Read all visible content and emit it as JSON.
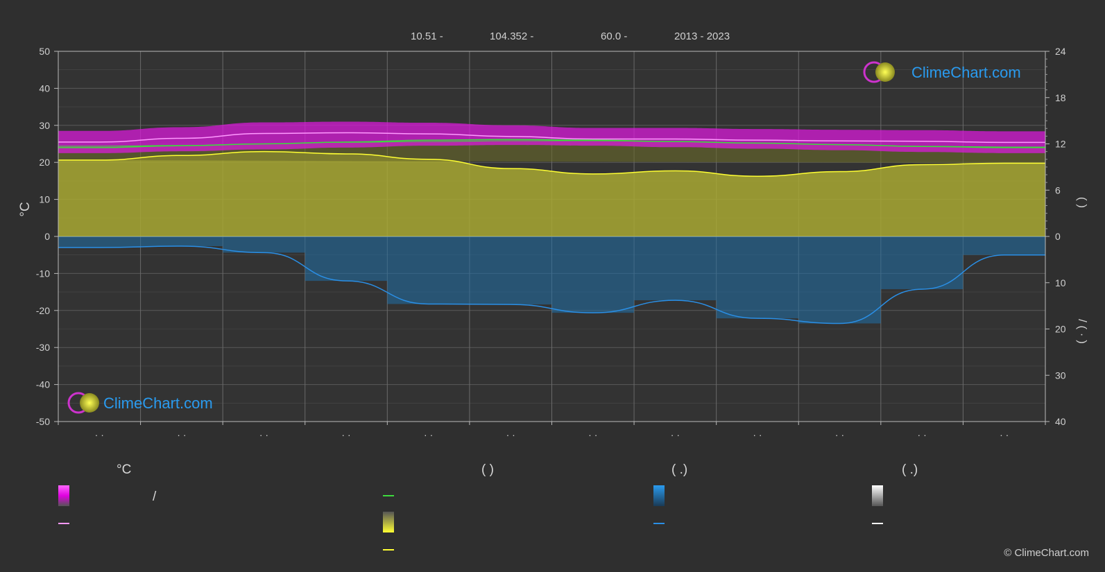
{
  "header": {
    "lat": "10.51 -",
    "lon": "104.352 -",
    "elev": "60.0 -",
    "years": "2013 - 2023"
  },
  "logo_text": "ClimeChart.com",
  "copyright": "© ClimeChart.com",
  "colors": {
    "background": "#2f2f2f",
    "temp_range": "#d81bd8",
    "avg_max": "#ff99ff",
    "avg_temp": "#3ddc3d",
    "sunshine_fill": "#a8a832",
    "sunshine_line": "#ffff33",
    "precip_fill": "#1f6fa8",
    "precip_line": "#2a8fe6",
    "snow_line": "#ffffff",
    "logo_blue": "#2a9bef"
  },
  "chart_data": {
    "type": "area",
    "x_months": [
      1,
      2,
      3,
      4,
      5,
      6,
      7,
      8,
      9,
      10,
      11,
      12
    ],
    "x_tick_labels": [
      "· ·",
      "· ·",
      "· ·",
      "· ·",
      "· ·",
      "· ·",
      "· ·",
      "· ·",
      "· ·",
      "· ·",
      "· ·",
      "· ·"
    ],
    "y_left": {
      "label": "°C",
      "range": [
        -50,
        50
      ],
      "ticks": [
        50,
        40,
        30,
        20,
        10,
        0,
        -10,
        -20,
        -30,
        -40,
        -50
      ]
    },
    "y_right_top": {
      "label": "(  )",
      "range": [
        0,
        24
      ],
      "ticks": [
        24,
        18,
        12,
        6,
        0
      ]
    },
    "y_right_bottom": {
      "label": "/  ( · )",
      "range": [
        0,
        40
      ],
      "ticks": [
        0,
        10,
        20,
        30,
        40
      ]
    },
    "grid": true,
    "series": [
      {
        "key": "max_temp",
        "values": [
          25.5,
          26.5,
          27.8,
          28.0,
          27.7,
          27.0,
          26.3,
          26.3,
          26.0,
          25.8,
          25.7,
          25.4
        ]
      },
      {
        "key": "min_temp",
        "values": [
          24.0,
          24.5,
          25.0,
          25.5,
          26.0,
          26.2,
          26.0,
          25.6,
          25.2,
          24.8,
          24.3,
          24.0
        ]
      },
      {
        "key": "daylight_hours",
        "values": [
          11.7,
          11.8,
          12.0,
          12.2,
          12.3,
          12.4,
          12.4,
          12.3,
          12.1,
          11.9,
          11.7,
          11.6
        ]
      },
      {
        "key": "sunshine_hours",
        "values": [
          9.9,
          10.5,
          11.0,
          10.7,
          10.0,
          8.8,
          8.1,
          8.5,
          7.8,
          8.4,
          9.3,
          9.5
        ]
      },
      {
        "key": "precipitation_mm",
        "values": [
          2.4,
          2.1,
          3.5,
          9.6,
          14.6,
          14.7,
          16.5,
          13.8,
          17.7,
          18.8,
          11.4,
          4.0
        ]
      }
    ],
    "legend": [
      {
        "col": 0,
        "header": "°C",
        "items": [
          {
            "swatch": "temp_range",
            "text": "/"
          },
          {
            "swatch": "avg_max",
            "text": ""
          }
        ]
      },
      {
        "col": 1,
        "header": "(          )",
        "items": [
          {
            "swatch": "avg_temp",
            "text": ""
          },
          {
            "swatch": "sunshine_fill",
            "text": ""
          },
          {
            "swatch": "sunshine_line",
            "text": ""
          }
        ]
      },
      {
        "col": 2,
        "header": "(   .)",
        "items": [
          {
            "swatch": "precip_fill",
            "text": ""
          },
          {
            "swatch": "precip_line",
            "text": ""
          }
        ]
      },
      {
        "col": 3,
        "header": "(   .)",
        "items": [
          {
            "swatch": "snow_fill",
            "text": ""
          },
          {
            "swatch": "snow_line",
            "text": ""
          }
        ]
      }
    ]
  }
}
